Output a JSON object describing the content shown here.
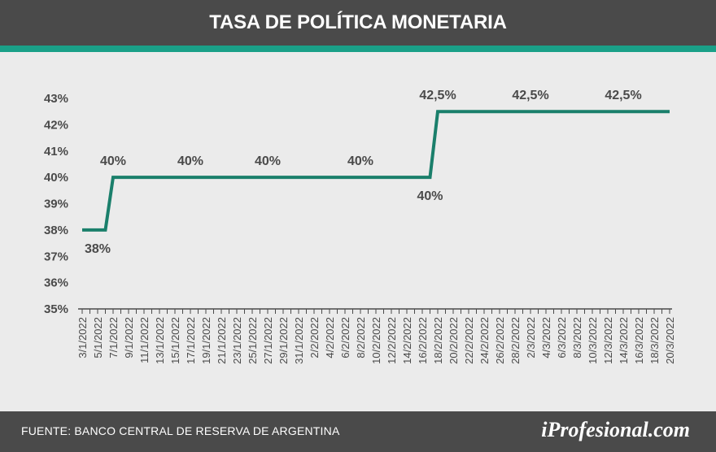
{
  "header": {
    "title": "TASA DE POLÍTICA MONETARIA"
  },
  "footer": {
    "source": "FUENTE: BANCO CENTRAL DE RESERVA DE ARGENTINA",
    "brand": "iProfesional.com"
  },
  "colors": {
    "line": "#1a7f6b",
    "accent": "#1aa088",
    "header_bg": "#4a4a4a",
    "plot_bg": "#ebebeb",
    "text": "#4a4a4a"
  },
  "chart_data": {
    "type": "line",
    "title": "TASA DE POLÍTICA MONETARIA",
    "xlabel": "",
    "ylabel": "",
    "ylim": [
      35,
      43
    ],
    "grid": false,
    "y_ticks": [
      "35%",
      "36%",
      "37%",
      "38%",
      "39%",
      "40%",
      "41%",
      "42%",
      "43%"
    ],
    "x_ticks": [
      "3/1/2022",
      "5/1/2022",
      "7/1/2022",
      "9/1/2022",
      "11/1/2022",
      "13/1/2022",
      "15/1/2022",
      "17/1/2022",
      "19/1/2022",
      "21/1/2022",
      "23/1/2022",
      "25/1/2022",
      "27/1/2022",
      "29/1/2022",
      "31/1/2022",
      "2/2/2022",
      "4/2/2022",
      "6/2/2022",
      "8/2/2022",
      "10/2/2022",
      "12/2/2022",
      "14/2/2022",
      "16/2/2022",
      "18/2/2022",
      "20/2/2022",
      "22/2/2022",
      "24/2/2022",
      "26/2/2022",
      "28/2/2022",
      "2/3/2022",
      "4/3/2022",
      "6/3/2022",
      "8/3/2022",
      "10/3/2022",
      "12/3/2022",
      "14/3/2022",
      "16/3/2022",
      "18/3/2022",
      "20/3/2022"
    ],
    "series": [
      {
        "points": [
          {
            "x": "3/1/2022",
            "y": 38
          },
          {
            "x": "6/1/2022",
            "y": 38
          },
          {
            "x": "7/1/2022",
            "y": 40
          },
          {
            "x": "17/2/2022",
            "y": 40
          },
          {
            "x": "18/2/2022",
            "y": 42.5
          },
          {
            "x": "20/3/2022",
            "y": 42.5
          }
        ]
      }
    ],
    "annotations": [
      {
        "x": "5/1/2022",
        "y": 38,
        "text": "38%",
        "position": "below"
      },
      {
        "x": "7/1/2022",
        "y": 40,
        "text": "40%",
        "position": "above"
      },
      {
        "x": "17/1/2022",
        "y": 40,
        "text": "40%",
        "position": "above"
      },
      {
        "x": "27/1/2022",
        "y": 40,
        "text": "40%",
        "position": "above"
      },
      {
        "x": "8/2/2022",
        "y": 40,
        "text": "40%",
        "position": "above"
      },
      {
        "x": "17/2/2022",
        "y": 40,
        "text": "40%",
        "position": "below"
      },
      {
        "x": "18/2/2022",
        "y": 42.5,
        "text": "42,5%",
        "position": "above"
      },
      {
        "x": "2/3/2022",
        "y": 42.5,
        "text": "42,5%",
        "position": "above"
      },
      {
        "x": "14/3/2022",
        "y": 42.5,
        "text": "42,5%",
        "position": "above"
      }
    ]
  }
}
